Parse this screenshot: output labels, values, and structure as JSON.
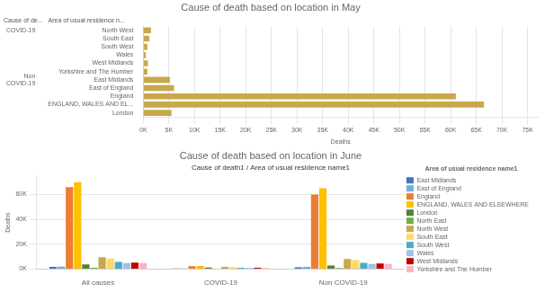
{
  "chart_data": [
    {
      "type": "bar",
      "orientation": "horizontal",
      "title": "Cause of death based on location in May",
      "categories": [
        "North West",
        "South East",
        "South West",
        "Wales",
        "West Midlands",
        "Yorkshire and The Humber",
        "East Midlands",
        "East of England",
        "England",
        "ENGLAND, WALES AND EL...",
        "London"
      ],
      "groups": [
        "COVID-19",
        "COVID-19",
        "COVID-19",
        "COVID-19",
        "COVID-19",
        "COVID-19",
        "Non\nCOVID-19",
        "Non\nCOVID-19",
        "Non\nCOVID-19",
        "Non\nCOVID-19",
        "Non\nCOVID-19"
      ],
      "group_label": "Cause of de...",
      "ylabel": "Area of usual residence n...",
      "values": [
        1500,
        1200,
        800,
        500,
        900,
        800,
        5200,
        6000,
        61000,
        66500,
        5500
      ],
      "color": "#c8a84b",
      "xlabel": "Deaths",
      "xlim": [
        0,
        77000
      ],
      "xticks": [
        {
          "value": 0,
          "label": "0K"
        },
        {
          "value": 5000,
          "label": "5K"
        },
        {
          "value": 10000,
          "label": "10K"
        },
        {
          "value": 15000,
          "label": "15K"
        },
        {
          "value": 20000,
          "label": "20K"
        },
        {
          "value": 25000,
          "label": "25K"
        },
        {
          "value": 30000,
          "label": "30K"
        },
        {
          "value": 35000,
          "label": "35K"
        },
        {
          "value": 40000,
          "label": "40K"
        },
        {
          "value": 45000,
          "label": "45K"
        },
        {
          "value": 50000,
          "label": "50K"
        },
        {
          "value": 55000,
          "label": "55K"
        },
        {
          "value": 60000,
          "label": "60K"
        },
        {
          "value": 65000,
          "label": "65K"
        },
        {
          "value": 70000,
          "label": "70K"
        },
        {
          "value": 75000,
          "label": "75K"
        }
      ],
      "grid": true
    },
    {
      "type": "bar",
      "title": "Cause of death based on location in June",
      "subtitle": "Cause of death1 / Area of usual residence name1",
      "categories": [
        "All causes",
        "COVID-19",
        "Non COVID-19"
      ],
      "series": [
        {
          "name": "East Midlands",
          "color": "#4472c4",
          "values": [
            1800,
            500,
            1400
          ]
        },
        {
          "name": "East of England",
          "color": "#70b0d8",
          "values": [
            2000,
            400,
            1700
          ]
        },
        {
          "name": "England",
          "color": "#ed7d31",
          "values": [
            66000,
            2200,
            60000
          ]
        },
        {
          "name": "ENGLAND, WALES AND ELSEWHERE",
          "color": "#ffc000",
          "values": [
            70000,
            2500,
            65000
          ]
        },
        {
          "name": "London",
          "color": "#548235",
          "values": [
            3800,
            1200,
            2800
          ]
        },
        {
          "name": "North East",
          "color": "#70ad47",
          "values": [
            1000,
            300,
            800
          ]
        },
        {
          "name": "North West",
          "color": "#c9a84c",
          "values": [
            9500,
            1800,
            8000
          ]
        },
        {
          "name": "South East",
          "color": "#ffd966",
          "values": [
            8500,
            1600,
            7200
          ]
        },
        {
          "name": "South West",
          "color": "#4bacc6",
          "values": [
            5800,
            1000,
            5000
          ]
        },
        {
          "name": "Wales",
          "color": "#9dc3e6",
          "values": [
            4800,
            900,
            4000
          ]
        },
        {
          "name": "West Midlands",
          "color": "#c00000",
          "values": [
            5200,
            950,
            4500
          ]
        },
        {
          "name": "Yorkshire and The Humber",
          "color": "#ffb3c1",
          "values": [
            4800,
            900,
            4000
          ]
        }
      ],
      "ylabel": "Deaths",
      "ylim": [
        0,
        75000
      ],
      "yticks": [
        {
          "value": 0,
          "label": "0K"
        },
        {
          "value": 20000,
          "label": "20K"
        },
        {
          "value": 40000,
          "label": "40K"
        },
        {
          "value": 60000,
          "label": "60K"
        }
      ],
      "grid": true,
      "legend": "right",
      "legend_title": "Area of usual residence name1"
    }
  ]
}
